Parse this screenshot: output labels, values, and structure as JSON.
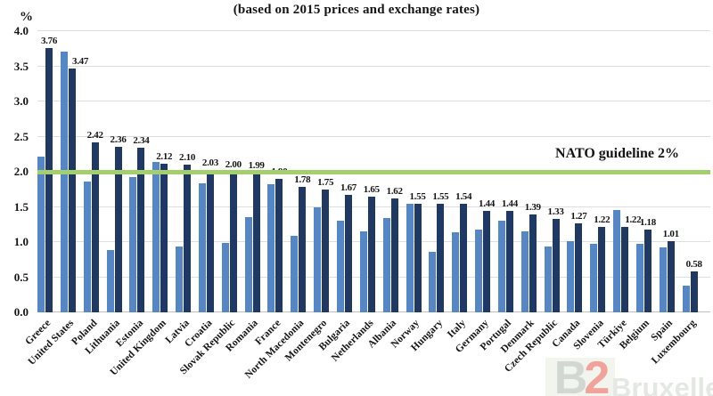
{
  "header": {
    "subtitle": "(based on 2015 prices and exchange rates)"
  },
  "axis": {
    "unit_label": "%",
    "ytick_values": [
      0,
      0.5,
      1.0,
      1.5,
      2.0,
      2.5,
      3.0,
      3.5,
      4.0
    ],
    "ytick_labels": [
      "0.0",
      "0.5",
      "1.0",
      "1.5",
      "2.0",
      "2.5",
      "3.0",
      "3.5",
      "4.0"
    ]
  },
  "guideline": {
    "label": "NATO guideline 2%",
    "value": 2.0
  },
  "colors": {
    "light_bar": "#5587C6",
    "dark_bar": "#1F3864",
    "guideline": "#A4CF6E",
    "gridline": "#DEDEDE",
    "axis_line": "#BFBFBF"
  },
  "chart_data": {
    "type": "bar",
    "title": "(based on 2015 prices and exchange rates)",
    "ylabel": "%",
    "ylim": [
      0,
      4.0
    ],
    "grid": "horizontal gridlines every 0.5",
    "legend_position": "none visible (cropped)",
    "annotation": "NATO guideline 2% (green horizontal line at y=2.0)",
    "categories": [
      "Greece",
      "United States",
      "Poland",
      "Lithuania",
      "Estonia",
      "United Kingdom",
      "Latvia",
      "Croatia",
      "Slovak Republic",
      "Romania",
      "France",
      "North Macedonia",
      "Montenegro",
      "Bulgaria",
      "Netherlands",
      "Albania",
      "Norway",
      "Hungary",
      "Italy",
      "Germany",
      "Portugal",
      "Denmark",
      "Czech Republic",
      "Canada",
      "Slovenia",
      "Türkiye",
      "Belgium",
      "Spain",
      "Luxembourg"
    ],
    "series": [
      {
        "name": "series-1-light-blue (unlabeled, values estimated from bar heights)",
        "color": "#5587C6",
        "values": [
          2.22,
          3.71,
          1.86,
          0.88,
          1.93,
          2.14,
          0.94,
          1.84,
          0.99,
          1.35,
          1.82,
          1.09,
          1.5,
          1.31,
          1.15,
          1.34,
          1.54,
          0.86,
          1.14,
          1.18,
          1.31,
          1.15,
          0.94,
          1.01,
          0.98,
          1.45,
          0.97,
          0.92,
          0.38
        ]
      },
      {
        "name": "series-2-dark-blue (labeled)",
        "color": "#1F3864",
        "values": [
          3.76,
          3.47,
          2.42,
          2.36,
          2.34,
          2.12,
          2.1,
          2.03,
          2.0,
          1.99,
          1.9,
          1.78,
          1.75,
          1.67,
          1.65,
          1.62,
          1.55,
          1.55,
          1.54,
          1.44,
          1.44,
          1.39,
          1.33,
          1.27,
          1.22,
          1.22,
          1.18,
          1.01,
          0.58
        ],
        "data_labels": [
          "3.76",
          "3.47",
          "2.42",
          "2.36",
          "2.34",
          "2.12",
          "2.10",
          "2.03",
          "2.00",
          "1.99",
          "1.90",
          "1.78",
          "1.75",
          "1.67",
          "1.65",
          "1.62",
          "1.55",
          "1.55",
          "1.54",
          "1.44",
          "1.44",
          "1.39",
          "1.33",
          "1.27",
          "1.22",
          "1.22",
          "1.18",
          "1.01",
          "0.58"
        ]
      }
    ]
  },
  "watermark": {
    "logo_b": "B",
    "logo_2": "2",
    "text": "Bruxelles"
  }
}
